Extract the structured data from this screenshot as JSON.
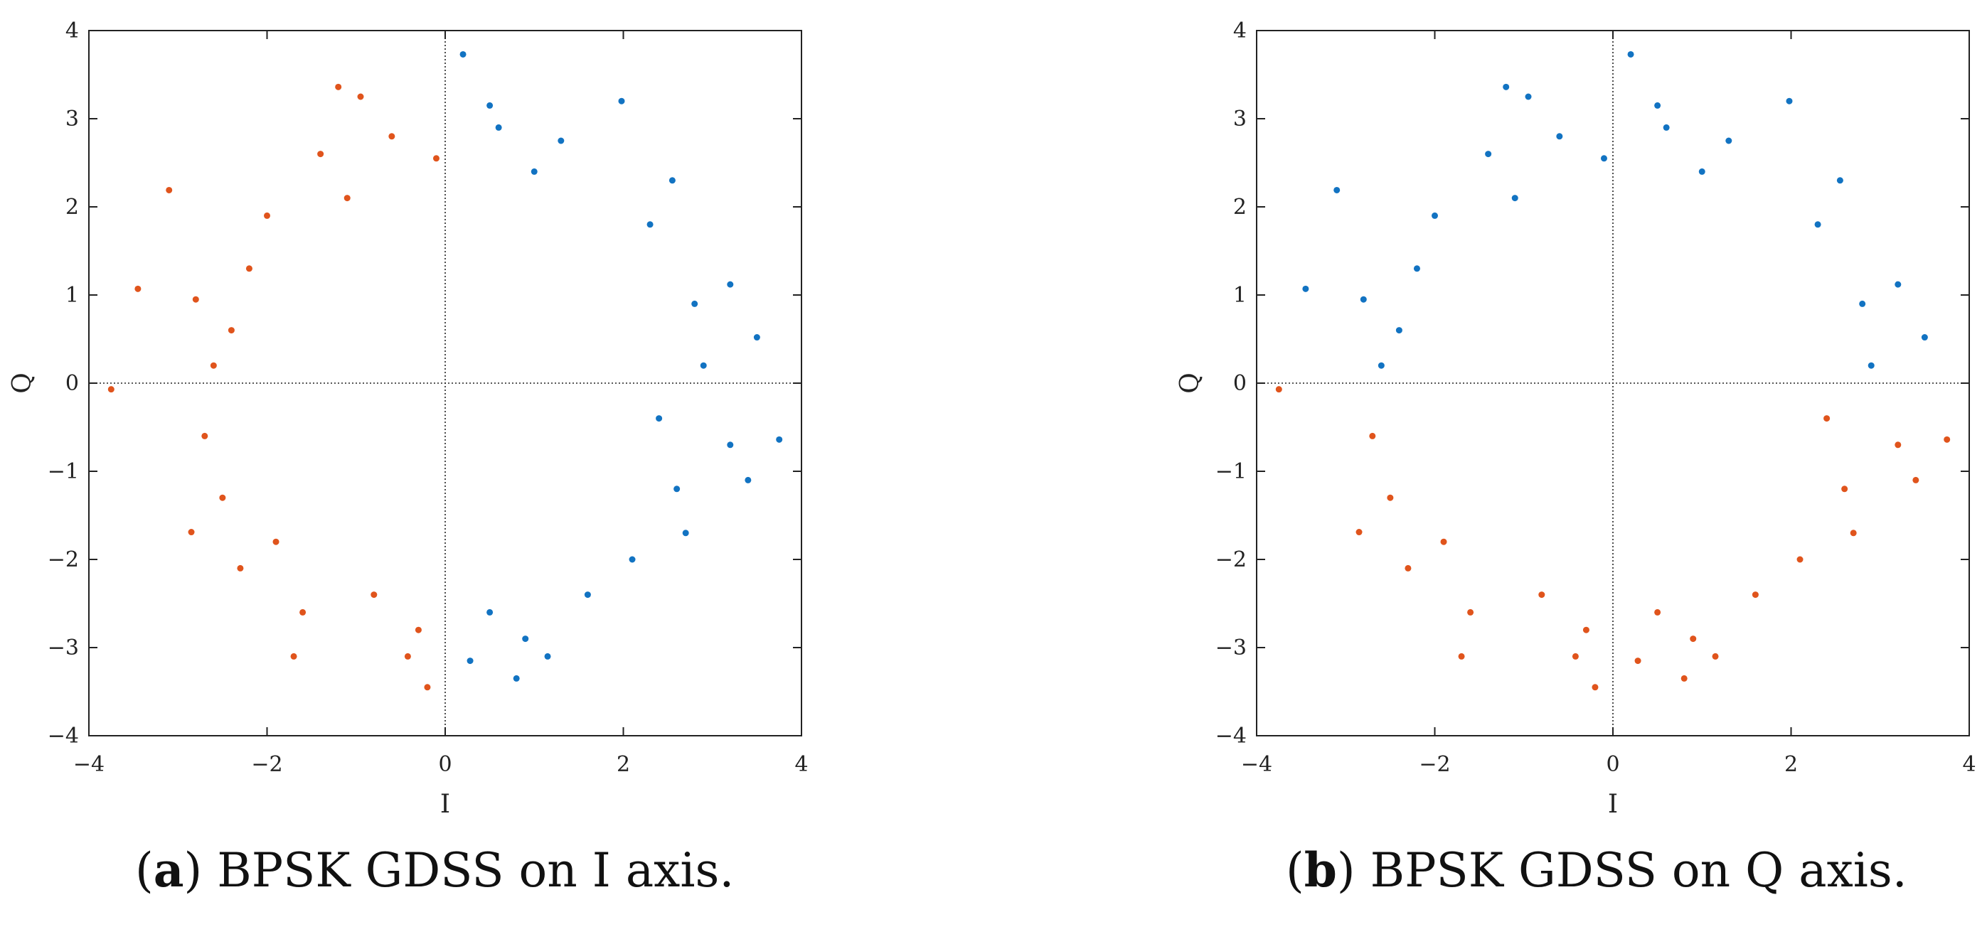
{
  "colors": {
    "series_a": "#E0541C",
    "series_b": "#1273C2",
    "axis": "#222222",
    "crosshair": "#222222"
  },
  "captions": [
    {
      "letter": "a",
      "text": " BPSK GDSS on I axis."
    },
    {
      "letter": "b",
      "text": " BPSK GDSS on Q axis."
    }
  ],
  "chart_data": [
    {
      "type": "scatter",
      "title": "",
      "xlabel": "I",
      "ylabel": "Q",
      "xlim": [
        -4,
        4
      ],
      "ylim": [
        -4,
        4
      ],
      "xticks": [
        -4,
        -2,
        0,
        2,
        4
      ],
      "yticks": [
        -4,
        -3,
        -2,
        -1,
        0,
        1,
        2,
        3,
        4
      ],
      "xtick_labels": [
        "−4",
        "−2",
        "0",
        "2",
        "4"
      ],
      "ytick_labels": [
        "−4",
        "−3",
        "−2",
        "−1",
        "0",
        "1",
        "2",
        "3",
        "4"
      ],
      "crosshair": true,
      "grid": false,
      "split": "sign of I",
      "series": [
        {
          "color": "#E0541C",
          "points": [
            [
              -3.75,
              -0.07
            ],
            [
              -3.45,
              1.07
            ],
            [
              -3.1,
              2.19
            ],
            [
              -2.85,
              -1.69
            ],
            [
              -2.8,
              0.95
            ],
            [
              -1.7,
              -3.1
            ],
            [
              -1.2,
              3.36
            ],
            [
              -0.95,
              3.25
            ],
            [
              -0.42,
              -3.1
            ],
            [
              -0.2,
              -3.45
            ],
            [
              -0.1,
              2.55
            ],
            [
              -2.3,
              -2.1
            ],
            [
              -2.6,
              0.2
            ],
            [
              -2.0,
              1.9
            ],
            [
              -1.6,
              -2.6
            ],
            [
              -2.7,
              -0.6
            ],
            [
              -2.5,
              -1.3
            ],
            [
              -1.4,
              2.6
            ],
            [
              -0.6,
              2.8
            ],
            [
              -0.3,
              -2.8
            ],
            [
              -1.9,
              -1.8
            ],
            [
              -2.2,
              1.3
            ],
            [
              -0.8,
              -2.4
            ],
            [
              -2.4,
              0.6
            ],
            [
              -1.1,
              2.1
            ]
          ]
        },
        {
          "color": "#1273C2",
          "points": [
            [
              0.2,
              3.73
            ],
            [
              0.5,
              3.15
            ],
            [
              1.98,
              3.2
            ],
            [
              3.75,
              -0.64
            ],
            [
              3.4,
              -1.1
            ],
            [
              3.2,
              1.12
            ],
            [
              3.5,
              0.52
            ],
            [
              0.8,
              -3.35
            ],
            [
              1.15,
              -3.1
            ],
            [
              0.28,
              -3.15
            ],
            [
              2.55,
              2.3
            ],
            [
              2.9,
              0.2
            ],
            [
              2.7,
              -1.7
            ],
            [
              3.2,
              -0.7
            ],
            [
              1.3,
              2.75
            ],
            [
              0.6,
              2.9
            ],
            [
              2.3,
              1.8
            ],
            [
              2.6,
              -1.2
            ],
            [
              0.5,
              -2.6
            ],
            [
              1.6,
              -2.4
            ],
            [
              2.8,
              0.9
            ],
            [
              1.0,
              2.4
            ],
            [
              2.1,
              -2.0
            ],
            [
              0.9,
              -2.9
            ],
            [
              2.4,
              -0.4
            ]
          ]
        }
      ]
    },
    {
      "type": "scatter",
      "title": "",
      "xlabel": "I",
      "ylabel": "Q",
      "xlim": [
        -4,
        4
      ],
      "ylim": [
        -4,
        4
      ],
      "xticks": [
        -4,
        -2,
        0,
        2,
        4
      ],
      "yticks": [
        -4,
        -3,
        -2,
        -1,
        0,
        1,
        2,
        3,
        4
      ],
      "xtick_labels": [
        "−4",
        "−2",
        "0",
        "2",
        "4"
      ],
      "ytick_labels": [
        "−4",
        "−3",
        "−2",
        "−1",
        "0",
        "1",
        "2",
        "3",
        "4"
      ],
      "crosshair": true,
      "grid": false,
      "split": "sign of Q",
      "series": [
        {
          "color": "#1273C2",
          "points": [
            [
              -3.45,
              1.07
            ],
            [
              -3.1,
              2.19
            ],
            [
              -2.8,
              0.95
            ],
            [
              -1.2,
              3.36
            ],
            [
              -0.95,
              3.25
            ],
            [
              0.2,
              3.73
            ],
            [
              0.5,
              3.15
            ],
            [
              1.98,
              3.2
            ],
            [
              3.5,
              0.52
            ],
            [
              3.2,
              1.12
            ],
            [
              -0.1,
              2.55
            ],
            [
              -2.0,
              1.9
            ],
            [
              2.55,
              2.3
            ],
            [
              1.3,
              2.75
            ],
            [
              0.6,
              2.9
            ],
            [
              -1.4,
              2.6
            ],
            [
              -0.6,
              2.8
            ],
            [
              2.3,
              1.8
            ],
            [
              -2.2,
              1.3
            ],
            [
              2.8,
              0.9
            ],
            [
              -2.4,
              0.6
            ],
            [
              1.0,
              2.4
            ],
            [
              -1.1,
              2.1
            ],
            [
              2.9,
              0.2
            ],
            [
              -2.6,
              0.2
            ]
          ]
        },
        {
          "color": "#E0541C",
          "points": [
            [
              -3.75,
              -0.07
            ],
            [
              -2.85,
              -1.69
            ],
            [
              -1.7,
              -3.1
            ],
            [
              -0.42,
              -3.1
            ],
            [
              -0.2,
              -3.45
            ],
            [
              0.8,
              -3.35
            ],
            [
              1.15,
              -3.1
            ],
            [
              0.28,
              -3.15
            ],
            [
              3.75,
              -0.64
            ],
            [
              3.4,
              -1.1
            ],
            [
              2.7,
              -1.7
            ],
            [
              3.2,
              -0.7
            ],
            [
              -2.3,
              -2.1
            ],
            [
              -1.6,
              -2.6
            ],
            [
              -2.7,
              -0.6
            ],
            [
              -2.5,
              -1.3
            ],
            [
              -0.3,
              -2.8
            ],
            [
              -1.9,
              -1.8
            ],
            [
              -0.8,
              -2.4
            ],
            [
              0.5,
              -2.6
            ],
            [
              1.6,
              -2.4
            ],
            [
              2.6,
              -1.2
            ],
            [
              2.1,
              -2.0
            ],
            [
              0.9,
              -2.9
            ],
            [
              2.4,
              -0.4
            ]
          ]
        }
      ]
    }
  ]
}
